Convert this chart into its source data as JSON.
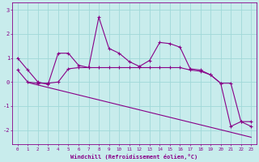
{
  "x": [
    0,
    1,
    2,
    3,
    4,
    5,
    6,
    7,
    8,
    9,
    10,
    11,
    12,
    13,
    14,
    15,
    16,
    17,
    18,
    19,
    20,
    21,
    22,
    23
  ],
  "line1": [
    1.0,
    0.5,
    0.0,
    -0.1,
    1.2,
    1.2,
    0.7,
    0.6,
    2.7,
    1.4,
    1.2,
    0.85,
    0.65,
    0.9,
    1.65,
    1.6,
    1.45,
    0.55,
    0.5,
    0.3,
    -0.05,
    -1.85,
    -1.65,
    -1.85
  ],
  "line2": [
    0.5,
    0.0,
    -0.05,
    -0.05,
    0.0,
    0.55,
    0.6,
    0.6,
    0.6,
    0.6,
    0.6,
    0.6,
    0.6,
    0.6,
    0.6,
    0.6,
    0.6,
    0.5,
    0.45,
    0.3,
    -0.05,
    -0.05,
    -1.65,
    -1.65
  ],
  "line3_x": [
    1,
    23
  ],
  "line3_y": [
    -0.02,
    -2.3
  ],
  "color": "#880088",
  "bg_color": "#c8ecec",
  "grid_color": "#a0d8d8",
  "xlabel": "Windchill (Refroidissement éolien,°C)",
  "ylim": [
    -2.6,
    3.3
  ],
  "xlim": [
    -0.5,
    23.5
  ],
  "yticks": [
    -2,
    -1,
    0,
    1,
    2,
    3
  ],
  "xticks": [
    0,
    1,
    2,
    3,
    4,
    5,
    6,
    7,
    8,
    9,
    10,
    11,
    12,
    13,
    14,
    15,
    16,
    17,
    18,
    19,
    20,
    21,
    22,
    23
  ]
}
